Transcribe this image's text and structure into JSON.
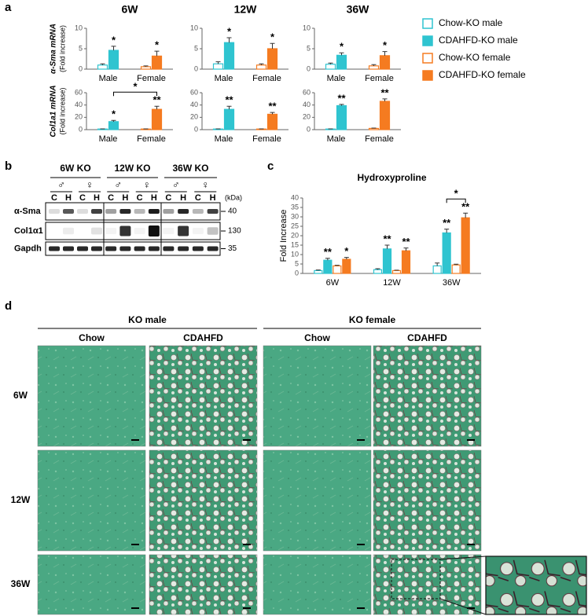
{
  "labels": [
    "a",
    "b",
    "c",
    "d"
  ],
  "legend": [
    {
      "name": "Chow-KO male",
      "color": "#2fc4d0",
      "filled": false
    },
    {
      "name": "CDAHFD-KO male",
      "color": "#2fc4d0",
      "filled": true
    },
    {
      "name": "Chow-KO female",
      "color": "#f57b20",
      "filled": false
    },
    {
      "name": "CDAHFD-KO female",
      "color": "#f57b20",
      "filled": true
    }
  ],
  "chart_data": [
    {
      "type": "bar",
      "title": "6W",
      "ylabel": "α-Sma mRNA",
      "ylabel_note": "(Fold increase)",
      "categories": [
        "Male",
        "Female"
      ],
      "ylim": [
        0,
        10
      ],
      "yticks": [
        0,
        5,
        10
      ],
      "series": [
        {
          "values": [
            1.0,
            null
          ],
          "errors": [
            0.3,
            null
          ]
        },
        {
          "values": [
            4.6,
            null
          ],
          "errors": [
            1.0,
            null
          ],
          "significance": [
            "*",
            null
          ]
        },
        {
          "values": [
            null,
            0.6
          ],
          "errors": [
            null,
            0.2
          ]
        },
        {
          "values": [
            null,
            3.2
          ],
          "errors": [
            null,
            1.2
          ],
          "significance": [
            null,
            "*"
          ]
        }
      ]
    },
    {
      "type": "bar",
      "title": "12W",
      "categories": [
        "Male",
        "Female"
      ],
      "ylim": [
        0,
        10
      ],
      "yticks": [
        0,
        5,
        10
      ],
      "series": [
        {
          "values": [
            1.3,
            null
          ],
          "errors": [
            0.5,
            null
          ]
        },
        {
          "values": [
            6.5,
            null
          ],
          "errors": [
            1.2,
            null
          ],
          "significance": [
            "*",
            null
          ]
        },
        {
          "values": [
            null,
            1.0
          ],
          "errors": [
            null,
            0.3
          ]
        },
        {
          "values": [
            null,
            5.0
          ],
          "errors": [
            null,
            1.3
          ],
          "significance": [
            null,
            "*"
          ]
        }
      ]
    },
    {
      "type": "bar",
      "title": "36W",
      "categories": [
        "Male",
        "Female"
      ],
      "ylim": [
        0,
        10
      ],
      "yticks": [
        0,
        5,
        10
      ],
      "series": [
        {
          "values": [
            1.2,
            null
          ],
          "errors": [
            0.3,
            null
          ]
        },
        {
          "values": [
            3.4,
            null
          ],
          "errors": [
            0.6,
            null
          ],
          "significance": [
            "*",
            null
          ]
        },
        {
          "values": [
            null,
            0.8
          ],
          "errors": [
            null,
            0.3
          ]
        },
        {
          "values": [
            null,
            3.3
          ],
          "errors": [
            null,
            1.0
          ],
          "significance": [
            null,
            "*"
          ]
        }
      ]
    },
    {
      "type": "bar",
      "ylabel": "Col1a1 mRNA",
      "ylabel_note": "(Fold increase)",
      "bracket": "*",
      "categories": [
        "Male",
        "Female"
      ],
      "ylim": [
        0,
        60
      ],
      "yticks": [
        0,
        20,
        40,
        60
      ],
      "series": [
        {
          "values": [
            1,
            null
          ],
          "errors": [
            0.3,
            null
          ]
        },
        {
          "values": [
            13,
            null
          ],
          "errors": [
            2,
            null
          ],
          "significance": [
            "*",
            null
          ]
        },
        {
          "values": [
            null,
            1
          ],
          "errors": [
            null,
            0.3
          ]
        },
        {
          "values": [
            null,
            33
          ],
          "errors": [
            null,
            5
          ],
          "significance": [
            null,
            "**"
          ]
        }
      ]
    },
    {
      "type": "bar",
      "categories": [
        "Male",
        "Female"
      ],
      "ylim": [
        0,
        60
      ],
      "yticks": [
        0,
        20,
        40,
        60
      ],
      "series": [
        {
          "values": [
            1,
            null
          ],
          "errors": [
            0.3,
            null
          ]
        },
        {
          "values": [
            33,
            null
          ],
          "errors": [
            5,
            null
          ],
          "significance": [
            "**",
            null
          ]
        },
        {
          "values": [
            null,
            1
          ],
          "errors": [
            null,
            0.3
          ]
        },
        {
          "values": [
            null,
            25
          ],
          "errors": [
            null,
            3
          ],
          "significance": [
            null,
            "**"
          ]
        }
      ]
    },
    {
      "type": "bar",
      "categories": [
        "Male",
        "Female"
      ],
      "ylim": [
        0,
        60
      ],
      "yticks": [
        0,
        20,
        40,
        60
      ],
      "series": [
        {
          "values": [
            1,
            null
          ],
          "errors": [
            0.3,
            null
          ]
        },
        {
          "values": [
            39,
            null
          ],
          "errors": [
            2,
            null
          ],
          "significance": [
            "**",
            null
          ]
        },
        {
          "values": [
            null,
            2
          ],
          "errors": [
            null,
            0.5
          ]
        },
        {
          "values": [
            null,
            46
          ],
          "errors": [
            null,
            4
          ],
          "significance": [
            null,
            "**"
          ]
        }
      ]
    },
    {
      "type": "bar",
      "title": "Hydroxyproline",
      "ylabel": "Fold Increase",
      "bracket": "*",
      "categories": [
        "6W",
        "12W",
        "36W"
      ],
      "ylim": [
        0,
        40
      ],
      "yticks": [
        0,
        5,
        10,
        15,
        20,
        25,
        30,
        35,
        40
      ],
      "series": [
        {
          "values": [
            1.5,
            2,
            4
          ],
          "errors": [
            0.3,
            0.5,
            1.5
          ]
        },
        {
          "values": [
            7,
            13,
            21.5
          ],
          "errors": [
            1,
            2,
            2
          ],
          "significance": [
            "**",
            "**",
            "**"
          ]
        },
        {
          "values": [
            4,
            1.5,
            4.5
          ],
          "errors": [
            0.3,
            0.2,
            0.4
          ]
        },
        {
          "values": [
            7.5,
            12,
            29.5
          ],
          "errors": [
            1,
            1.5,
            2.5
          ],
          "significance": [
            "*",
            "**",
            "**"
          ]
        }
      ]
    }
  ],
  "blot": {
    "columns": [
      "6W KO",
      "12W KO",
      "36W KO"
    ],
    "sex": [
      "♂",
      "♀"
    ],
    "lanes": [
      "C",
      "H"
    ],
    "unit": "(kDa)",
    "rows": [
      {
        "name": "α-Sma",
        "kda": 40
      },
      {
        "name": "Col1α1",
        "kda": 130
      },
      {
        "name": "Gapdh",
        "kda": 35
      }
    ]
  },
  "histology": {
    "groups": [
      "KO male",
      "KO female"
    ],
    "diets": [
      "Chow",
      "CDAHFD"
    ],
    "rows": [
      "6W",
      "12W",
      "36W"
    ]
  }
}
